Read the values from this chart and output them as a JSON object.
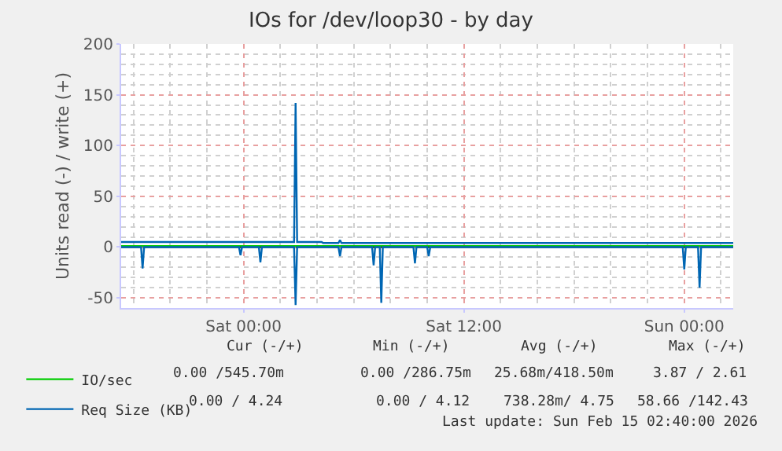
{
  "chart_data": {
    "type": "line",
    "title": "IOs for /dev/loop30 - by day",
    "ylabel": "Units read (-) / write (+)",
    "xlim": [
      "2026-02-13T17:20",
      "2026-02-15T02:40"
    ],
    "xticks": [
      {
        "value": "2026-02-14T00:00",
        "label": "Sat 00:00"
      },
      {
        "value": "2026-02-14T12:00",
        "label": "Sat 12:00"
      },
      {
        "value": "2026-02-15T00:00",
        "label": "Sun 00:00"
      }
    ],
    "ylim": [
      -60,
      200
    ],
    "yticks": [
      -50,
      0,
      50,
      100,
      150,
      200
    ],
    "grid": true,
    "legend": "bottom left",
    "marker": "none",
    "line_style": "solid",
    "series": [
      {
        "name": "IO/sec",
        "color": "#00cc00",
        "x": [
          "2026-02-13T17:20",
          "2026-02-15T02:40"
        ],
        "values": [
          1,
          1
        ]
      },
      {
        "name": "Req Size (KB)",
        "color": "#0066b3",
        "x": [
          "2026-02-13T17:20",
          "2026-02-14T02:45",
          "2026-02-14T02:50",
          "2026-02-14T02:55",
          "2026-02-14T04:15",
          "2026-02-14T04:20",
          "2026-02-14T05:10",
          "2026-02-14T05:15",
          "2026-02-14T05:20",
          "2026-02-15T02:40"
        ],
        "values": [
          5,
          5,
          142,
          5,
          5,
          4,
          4,
          7,
          4,
          4
        ]
      },
      {
        "color": "#0066b3",
        "x": [
          "2026-02-13T17:20",
          "2026-02-13T18:25",
          "2026-02-13T18:30",
          "2026-02-13T18:35",
          "2026-02-13T23:45",
          "2026-02-13T23:50",
          "2026-02-13T23:55",
          "2026-02-14T00:50",
          "2026-02-14T00:55",
          "2026-02-14T01:00",
          "2026-02-14T02:45",
          "2026-02-14T02:50",
          "2026-02-14T02:55",
          "2026-02-14T05:10",
          "2026-02-14T05:15",
          "2026-02-14T05:20",
          "2026-02-14T07:00",
          "2026-02-14T07:05",
          "2026-02-14T07:10",
          "2026-02-14T07:25",
          "2026-02-14T07:30",
          "2026-02-14T07:35",
          "2026-02-14T09:15",
          "2026-02-14T09:20",
          "2026-02-14T09:25",
          "2026-02-14T10:00",
          "2026-02-14T10:05",
          "2026-02-14T10:10",
          "2026-02-14T23:55",
          "2026-02-15T00:00",
          "2026-02-15T00:05",
          "2026-02-15T00:45",
          "2026-02-15T00:50",
          "2026-02-15T00:55",
          "2026-02-15T02:40"
        ],
        "values": [
          0,
          0,
          -21,
          0,
          0,
          -8,
          0,
          0,
          -15,
          0,
          0,
          -57,
          0,
          0,
          -9,
          0,
          0,
          -18,
          0,
          0,
          -55,
          0,
          0,
          -16,
          0,
          0,
          -9,
          0,
          0,
          -22,
          0,
          0,
          -40,
          0,
          0
        ]
      }
    ],
    "annotations": [
      "Cur (-/+)",
      "Min (-/+)",
      "Avg (-/+)",
      "Max (-/+)",
      "0.00 /545.70m",
      "0.00 /286.75m",
      "25.68m/418.50m",
      "3.87 / 2.61",
      "0.00 / 4.24",
      "0.00 / 4.12",
      "738.28m/ 4.75",
      "58.66 /142.43",
      "Last update: Sun Feb 15 02:40:00 2026"
    ]
  }
}
